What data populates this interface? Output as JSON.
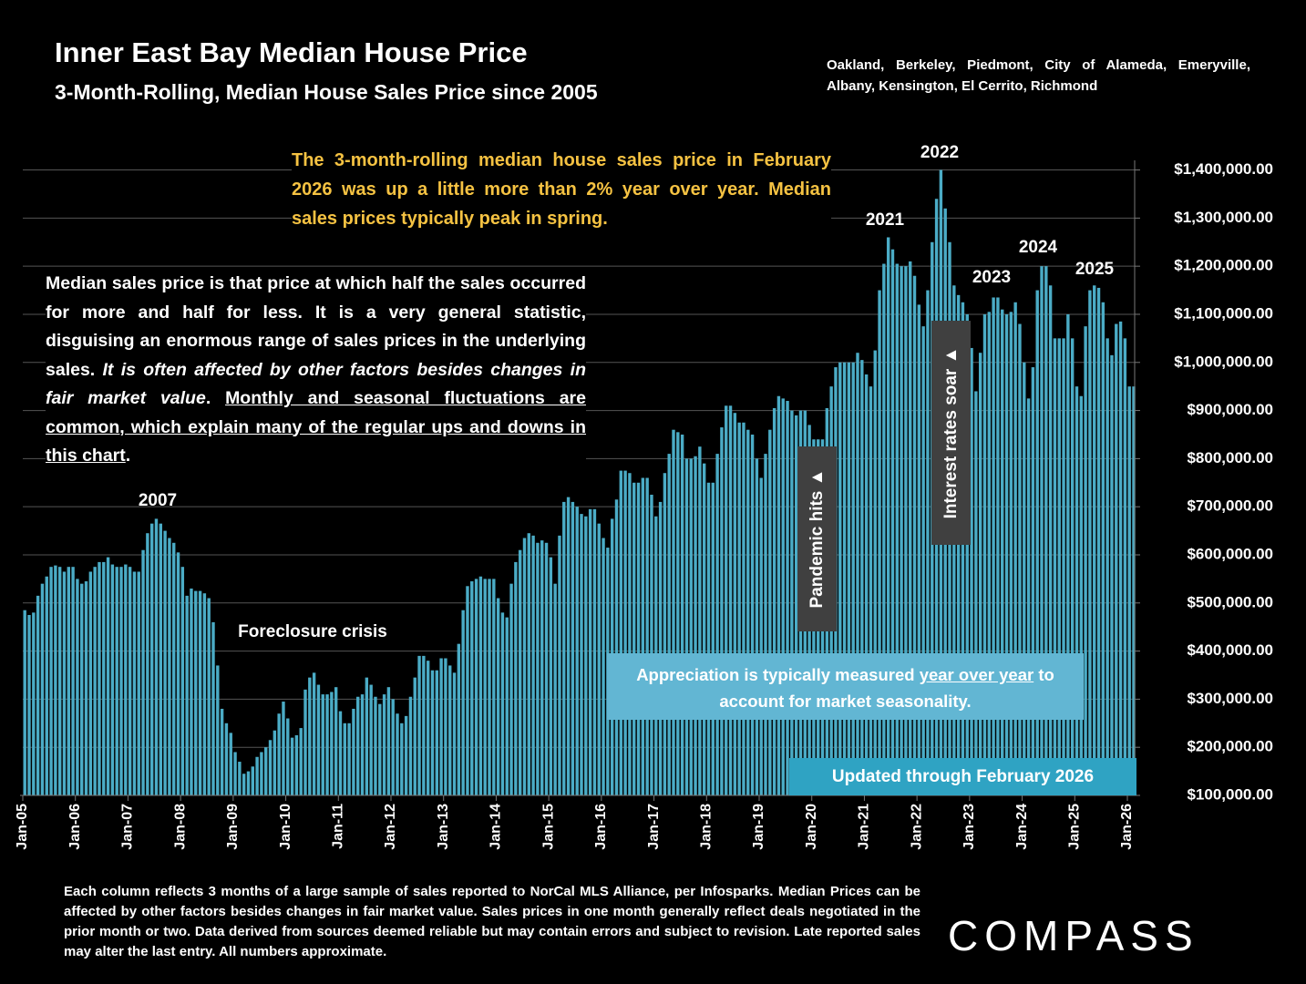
{
  "chart_data": {
    "type": "bar",
    "title": "Inner East Bay Median House Price",
    "subtitle": "3-Month-Rolling, Median House Sales Price since 2005",
    "region_note": "Oakland, Berkeley, Piedmont, City of Alameda, Emeryville, Albany, Kensington, El Cerrito, Richmond",
    "headline_note": "The 3-month-rolling median house sales price in February 2026 was up a little more than 2% year over year. Median sales prices typically peak in spring.",
    "body_note": [
      "Median sales price is that price at which half the sales occurred for more and half for less. It is a very general statistic, disguising an enormous range of sales prices in the underlying sales. ",
      "It is often affected by other factors besides changes in fair market value",
      ". ",
      "Monthly and seasonal fluctuations are common, which explain many of the regular ups and downs in this chart",
      "."
    ],
    "appreciation_note": [
      "Appreciation is typically measured ",
      "year over year",
      " to account for market seasonality."
    ],
    "updated_note": "Updated through February 2026",
    "annotations": {
      "y2007": "2007",
      "foreclosure": "Foreclosure crisis",
      "pandemic": "Pandemic hits ▲",
      "rates": "Interest rates soar ▲",
      "y2021": "2021",
      "y2022": "2022",
      "y2023": "2023",
      "y2024": "2024",
      "y2025": "2025"
    },
    "footnote": "Each column reflects 3 months of a large sample of sales reported to NorCal MLS Alliance, per Infosparks. Median Prices can be affected by other factors besides changes in fair market value. Sales prices in one month generally reflect deals negotiated in the prior month or two. Data derived from sources deemed reliable but may contain errors and subject to revision. Late reported sales may alter the last entry. All numbers approximate.",
    "logo": "COMPASS",
    "color": "#4bacc6",
    "grid": true,
    "ylim": [
      100000,
      1420000
    ],
    "yticks": [
      {
        "value": 100000,
        "label": "$100,000.00"
      },
      {
        "value": 200000,
        "label": "$200,000.00"
      },
      {
        "value": 300000,
        "label": "$300,000.00"
      },
      {
        "value": 400000,
        "label": "$400,000.00"
      },
      {
        "value": 500000,
        "label": "$500,000.00"
      },
      {
        "value": 600000,
        "label": "$600,000.00"
      },
      {
        "value": 700000,
        "label": "$700,000.00"
      },
      {
        "value": 800000,
        "label": "$800,000.00"
      },
      {
        "value": 900000,
        "label": "$900,000.00"
      },
      {
        "value": 1000000,
        "label": "$1,000,000.00"
      },
      {
        "value": 1100000,
        "label": "$1,100,000.00"
      },
      {
        "value": 1200000,
        "label": "$1,200,000.00"
      },
      {
        "value": 1300000,
        "label": "$1,300,000.00"
      },
      {
        "value": 1400000,
        "label": "$1,400,000.00"
      }
    ],
    "categories": [
      "Jan-05",
      null,
      null,
      null,
      null,
      null,
      null,
      null,
      null,
      null,
      null,
      null,
      "Jan-06",
      null,
      null,
      null,
      null,
      null,
      null,
      null,
      null,
      null,
      null,
      null,
      "Jan-07",
      null,
      null,
      null,
      null,
      null,
      null,
      null,
      null,
      null,
      null,
      null,
      "Jan-08",
      null,
      null,
      null,
      null,
      null,
      null,
      null,
      null,
      null,
      null,
      null,
      "Jan-09",
      null,
      null,
      null,
      null,
      null,
      null,
      null,
      null,
      null,
      null,
      null,
      "Jan-10",
      null,
      null,
      null,
      null,
      null,
      null,
      null,
      null,
      null,
      null,
      null,
      "Jan-11",
      null,
      null,
      null,
      null,
      null,
      null,
      null,
      null,
      null,
      null,
      null,
      "Jan-12",
      null,
      null,
      null,
      null,
      null,
      null,
      null,
      null,
      null,
      null,
      null,
      "Jan-13",
      null,
      null,
      null,
      null,
      null,
      null,
      null,
      null,
      null,
      null,
      null,
      "Jan-14",
      null,
      null,
      null,
      null,
      null,
      null,
      null,
      null,
      null,
      null,
      null,
      "Jan-15",
      null,
      null,
      null,
      null,
      null,
      null,
      null,
      null,
      null,
      null,
      null,
      "Jan-16",
      null,
      null,
      null,
      null,
      null,
      null,
      null,
      null,
      null,
      null,
      null,
      "Jan-17",
      null,
      null,
      null,
      null,
      null,
      null,
      null,
      null,
      null,
      null,
      null,
      "Jan-18",
      null,
      null,
      null,
      null,
      null,
      null,
      null,
      null,
      null,
      null,
      null,
      "Jan-19",
      null,
      null,
      null,
      null,
      null,
      null,
      null,
      null,
      null,
      null,
      null,
      "Jan-20",
      null,
      null,
      null,
      null,
      null,
      null,
      null,
      null,
      null,
      null,
      null,
      "Jan-21",
      null,
      null,
      null,
      null,
      null,
      null,
      null,
      null,
      null,
      null,
      null,
      "Jan-22",
      null,
      null,
      null,
      null,
      null,
      null,
      null,
      null,
      null,
      null,
      null,
      "Jan-23",
      null,
      null,
      null,
      null,
      null,
      null,
      null,
      null,
      null,
      null,
      null,
      "Jan-24",
      null,
      null,
      null,
      null,
      null,
      null,
      null,
      null,
      null,
      null,
      null,
      "Jan-25",
      null,
      null,
      null,
      null,
      null,
      null,
      null,
      null,
      null,
      null,
      null,
      "Jan-26",
      null
    ],
    "values": [
      485000,
      475000,
      480000,
      515000,
      540000,
      555000,
      575000,
      578000,
      575000,
      565000,
      575000,
      575000,
      550000,
      540000,
      545000,
      565000,
      575000,
      585000,
      585000,
      595000,
      580000,
      575000,
      575000,
      580000,
      575000,
      565000,
      565000,
      610000,
      645000,
      665000,
      675000,
      665000,
      650000,
      635000,
      625000,
      605000,
      575000,
      515000,
      530000,
      525000,
      525000,
      520000,
      510000,
      460000,
      370000,
      280000,
      250000,
      230000,
      190000,
      170000,
      145000,
      150000,
      160000,
      180000,
      190000,
      200000,
      215000,
      235000,
      270000,
      295000,
      260000,
      220000,
      225000,
      240000,
      320000,
      345000,
      355000,
      330000,
      310000,
      310000,
      315000,
      325000,
      275000,
      250000,
      250000,
      280000,
      305000,
      310000,
      345000,
      330000,
      305000,
      290000,
      310000,
      325000,
      300000,
      270000,
      250000,
      265000,
      305000,
      345000,
      390000,
      390000,
      380000,
      360000,
      360000,
      385000,
      385000,
      370000,
      355000,
      415000,
      485000,
      535000,
      545000,
      550000,
      555000,
      550000,
      550000,
      550000,
      510000,
      480000,
      470000,
      540000,
      585000,
      610000,
      635000,
      645000,
      640000,
      625000,
      630000,
      625000,
      595000,
      540000,
      640000,
      710000,
      720000,
      710000,
      700000,
      685000,
      680000,
      695000,
      695000,
      665000,
      635000,
      615000,
      675000,
      715000,
      775000,
      775000,
      770000,
      750000,
      750000,
      760000,
      760000,
      725000,
      680000,
      710000,
      770000,
      810000,
      860000,
      855000,
      850000,
      800000,
      800000,
      805000,
      825000,
      790000,
      750000,
      750000,
      810000,
      865000,
      910000,
      910000,
      895000,
      875000,
      875000,
      860000,
      850000,
      800000,
      760000,
      810000,
      860000,
      905000,
      930000,
      925000,
      920000,
      900000,
      890000,
      900000,
      900000,
      870000,
      840000,
      840000,
      840000,
      905000,
      950000,
      990000,
      1000000,
      1000000,
      1000000,
      1000000,
      1020000,
      1005000,
      975000,
      950000,
      1025000,
      1150000,
      1205000,
      1260000,
      1235000,
      1205000,
      1200000,
      1200000,
      1210000,
      1180000,
      1120000,
      1075000,
      1150000,
      1250000,
      1340000,
      1400000,
      1320000,
      1250000,
      1160000,
      1140000,
      1125000,
      1100000,
      1030000,
      940000,
      1020000,
      1100000,
      1105000,
      1135000,
      1135000,
      1110000,
      1100000,
      1105000,
      1125000,
      1080000,
      1000000,
      925000,
      990000,
      1150000,
      1200000,
      1200000,
      1160000,
      1050000,
      1050000,
      1050000,
      1100000,
      1050000,
      950000,
      930000,
      1075000,
      1150000,
      1160000,
      1155000,
      1125000,
      1050000,
      1015000,
      1080000,
      1085000,
      1050000,
      950000,
      950000
    ]
  }
}
